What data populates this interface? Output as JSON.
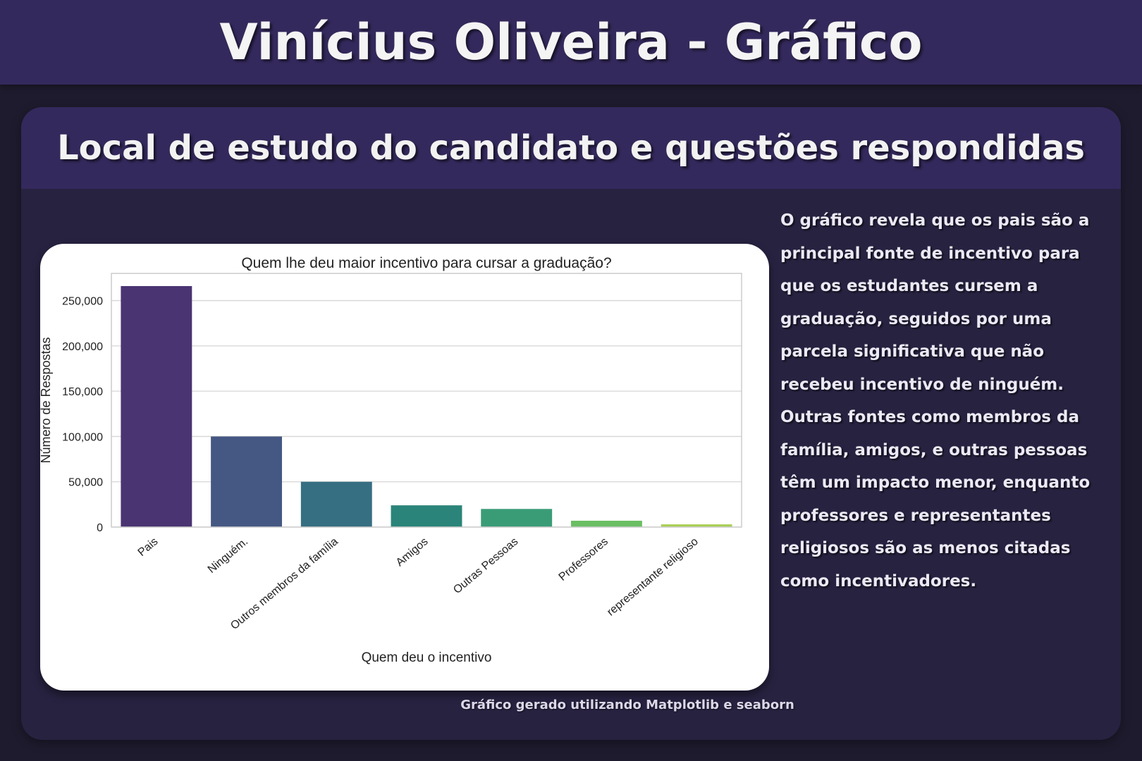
{
  "header": {
    "title": "Vinícius Oliveira - Gráfico"
  },
  "card": {
    "title": "Local de estudo do candidato e questões respondidas",
    "description": "O gráfico revela que os pais são a principal fonte de incentivo para que os estudantes cursem a graduação, seguidos por uma parcela significativa que não recebeu incentivo de ninguém. Outras fontes como membros da família, amigos, e outras pessoas têm um impacto menor, enquanto professores e representantes religiosos são as menos citadas como incentivadores.",
    "footnote": "Gráfico gerado utilizando Matplotlib e seaborn"
  },
  "chart_data": {
    "type": "bar",
    "title": "Quem lhe deu maior incentivo para cursar a graduação?",
    "xlabel": "Quem deu o incentivo",
    "ylabel": "Número de Respostas",
    "categories": [
      "Pais",
      "Ninguém.",
      "Outros membros da família",
      "Amigos",
      "Outras Pessoas",
      "Professores",
      "representante religioso"
    ],
    "values": [
      266000,
      100000,
      50000,
      24000,
      20000,
      7000,
      3000
    ],
    "colors": [
      "#4a3472",
      "#455883",
      "#376f82",
      "#2a8479",
      "#3a9c77",
      "#6bbf63",
      "#a8cf52"
    ],
    "ylim": [
      0,
      280000
    ],
    "yticks": [
      0,
      50000,
      100000,
      150000,
      200000,
      250000
    ],
    "ytick_labels": [
      "0",
      "50,000",
      "100,000",
      "150,000",
      "200,000",
      "250,000"
    ],
    "grid": true,
    "legend": "none"
  }
}
